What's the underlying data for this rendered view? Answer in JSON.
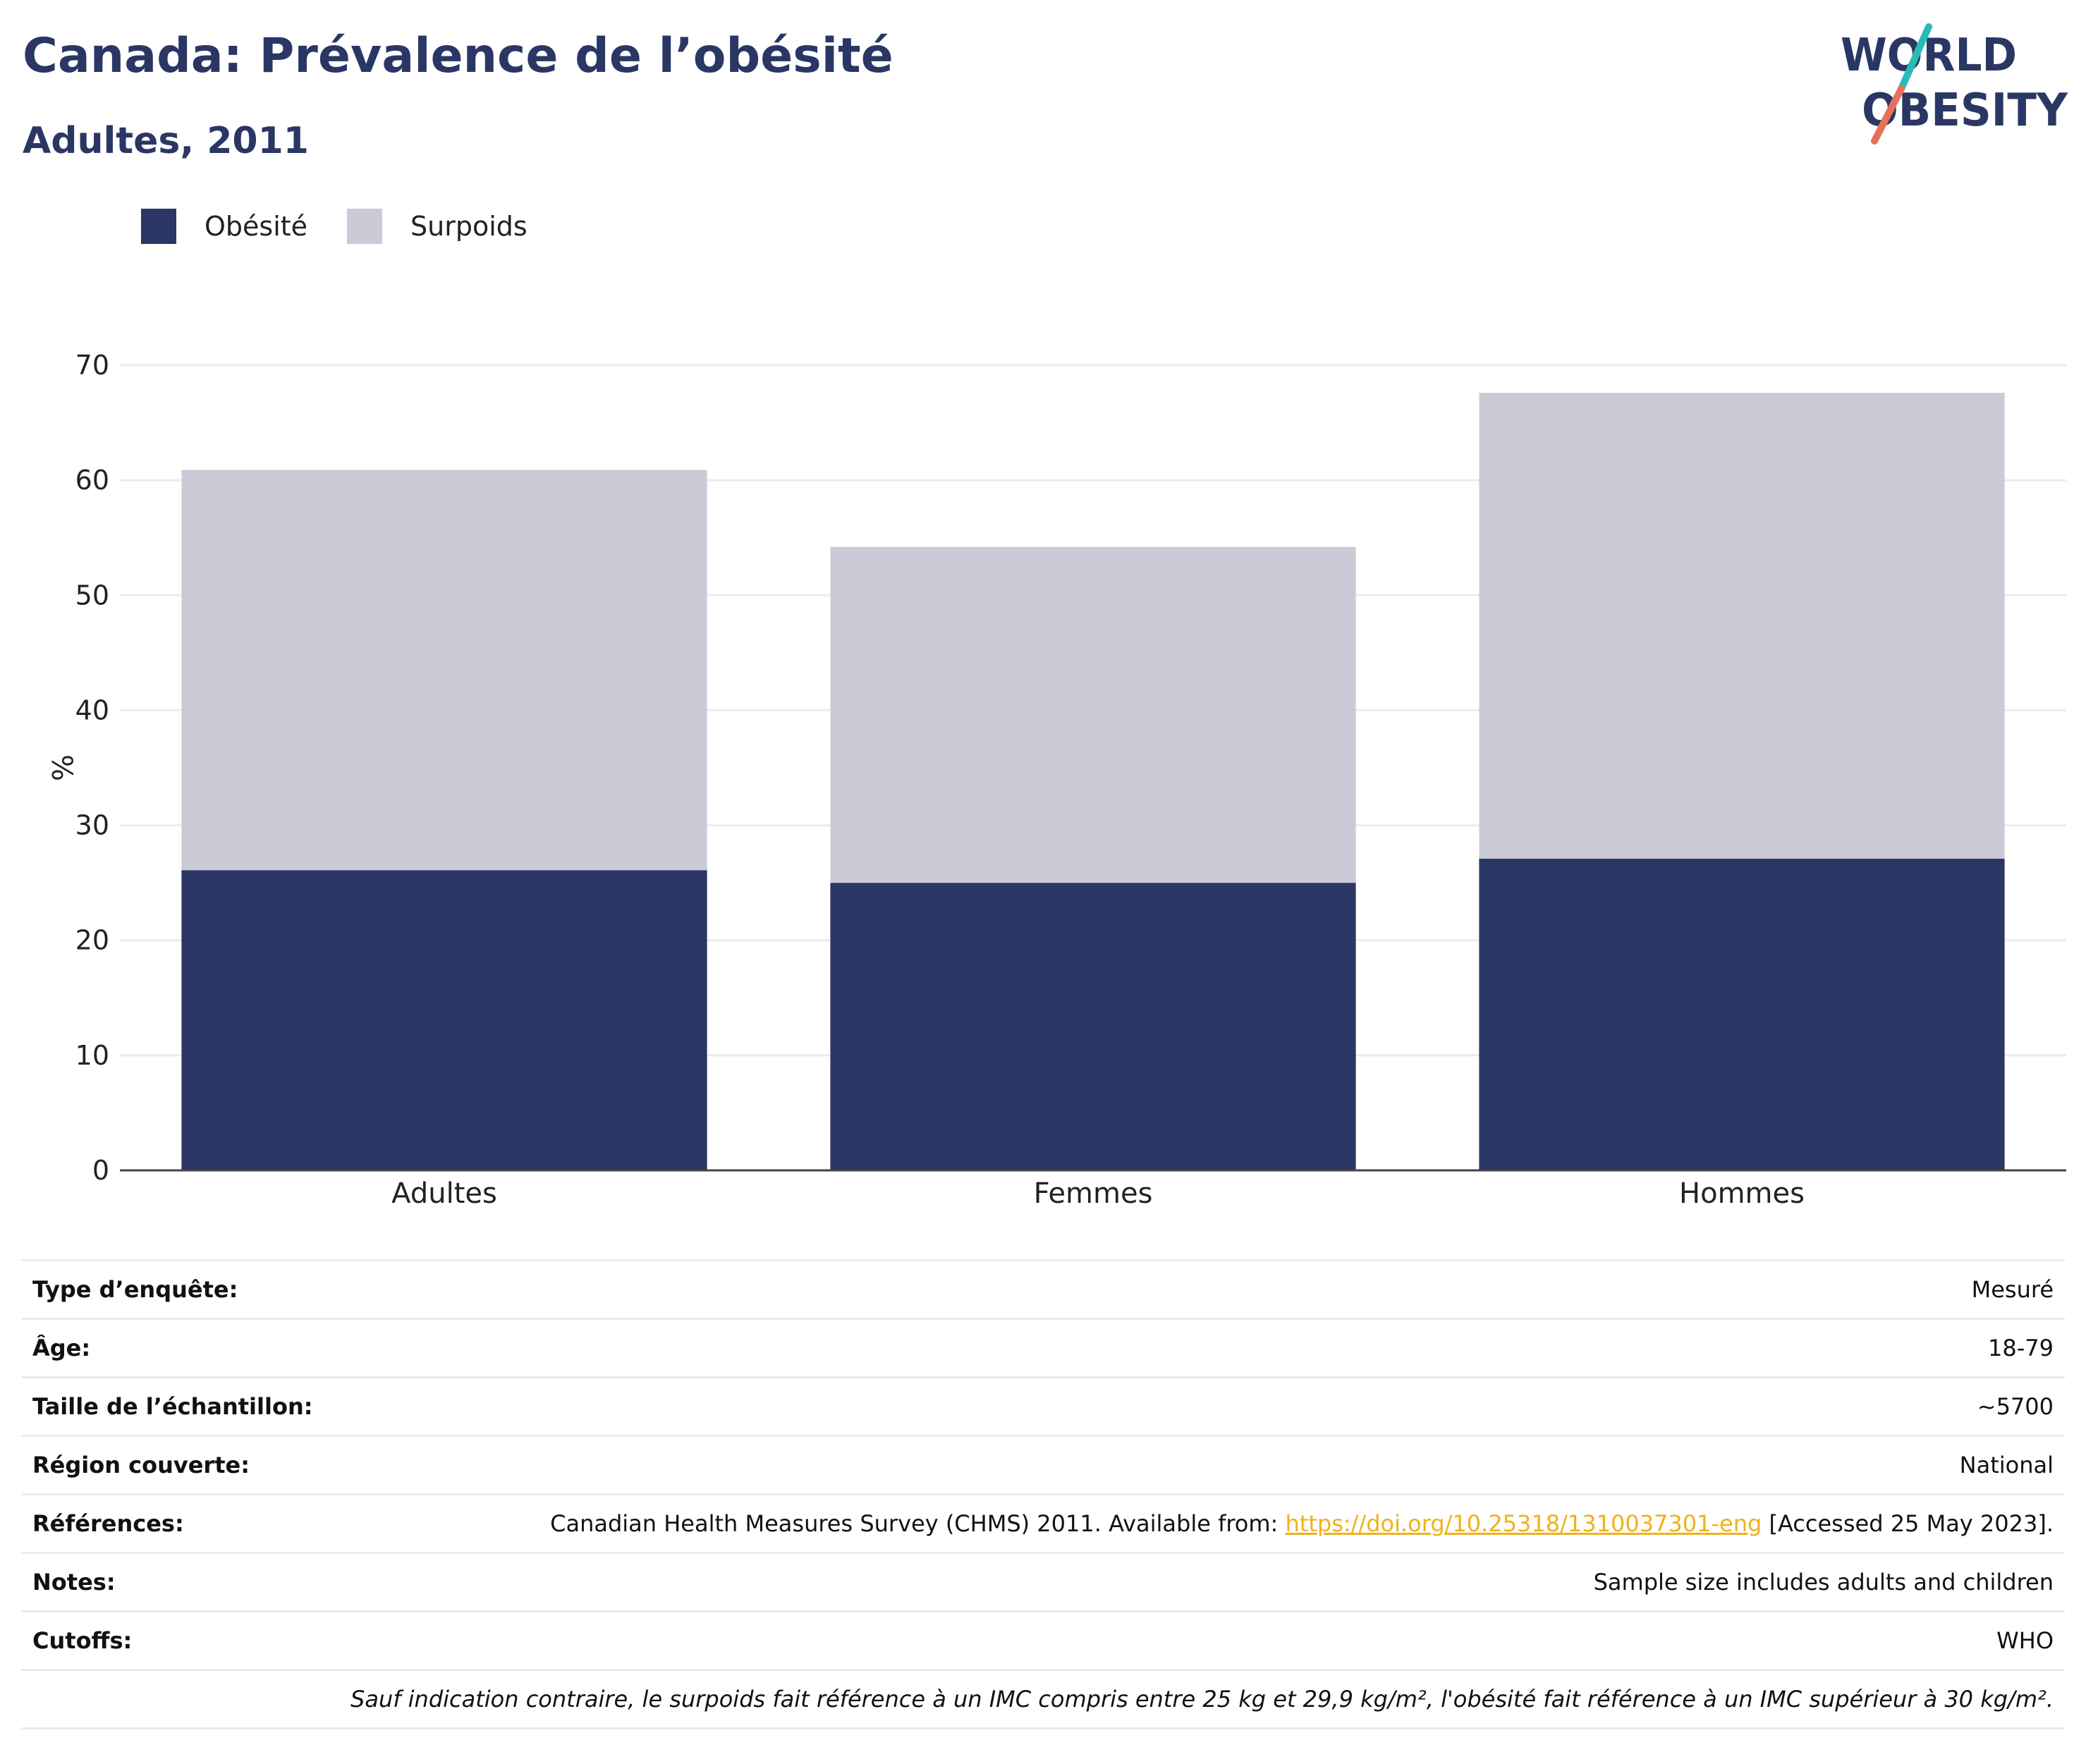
{
  "title": "Canada: Prévalence de l’obésité",
  "subtitle": "Adultes, 2011",
  "logo": {
    "line1": "WORLD",
    "line2": "OBESITY",
    "colors": {
      "navy": "#2a3764",
      "teal": "#2bbbb6",
      "coral": "#e8705a"
    }
  },
  "colors": {
    "obesity": "#2a3764",
    "overweight": "#cacbd7",
    "grid": "#ebebeb",
    "axis": "#444444",
    "link": "#f0b21a"
  },
  "chart_data": {
    "type": "bar",
    "stacked": true,
    "categories": [
      "Adultes",
      "Femmes",
      "Hommes"
    ],
    "series": [
      {
        "name": "Obésité",
        "values": [
          26.1,
          25.0,
          27.1
        ]
      },
      {
        "name": "Surpoids",
        "values": [
          34.8,
          29.2,
          40.5
        ]
      }
    ],
    "ylabel": "%",
    "ylim": [
      0,
      70
    ],
    "yticks": [
      0,
      10,
      20,
      30,
      40,
      50,
      60,
      70
    ],
    "grid": true,
    "legend": "top-left"
  },
  "info": {
    "survey_type": {
      "label": "Type d’enquête:",
      "value": "Mesuré"
    },
    "age": {
      "label": "Âge:",
      "value": "18-79"
    },
    "sample": {
      "label": "Taille de l’échantillon:",
      "value": "~5700"
    },
    "region": {
      "label": "Région couverte:",
      "value": "National"
    },
    "references": {
      "label": "Références:",
      "before": "Canadian Health Measures Survey (CHMS) 2011. Available from: ",
      "link": "https://doi.org/10.25318/1310037301-eng",
      "after": " [Accessed 25 May 2023]."
    },
    "notes": {
      "label": "Notes:",
      "value": "Sample size includes adults and children"
    },
    "cutoffs": {
      "label": "Cutoffs:",
      "value": "WHO"
    },
    "footnote": "Sauf indication contraire, le surpoids fait référence à un IMC compris entre 25 kg et 29,9 kg/m², l'obésité fait référence à un IMC supérieur à 30 kg/m²."
  }
}
